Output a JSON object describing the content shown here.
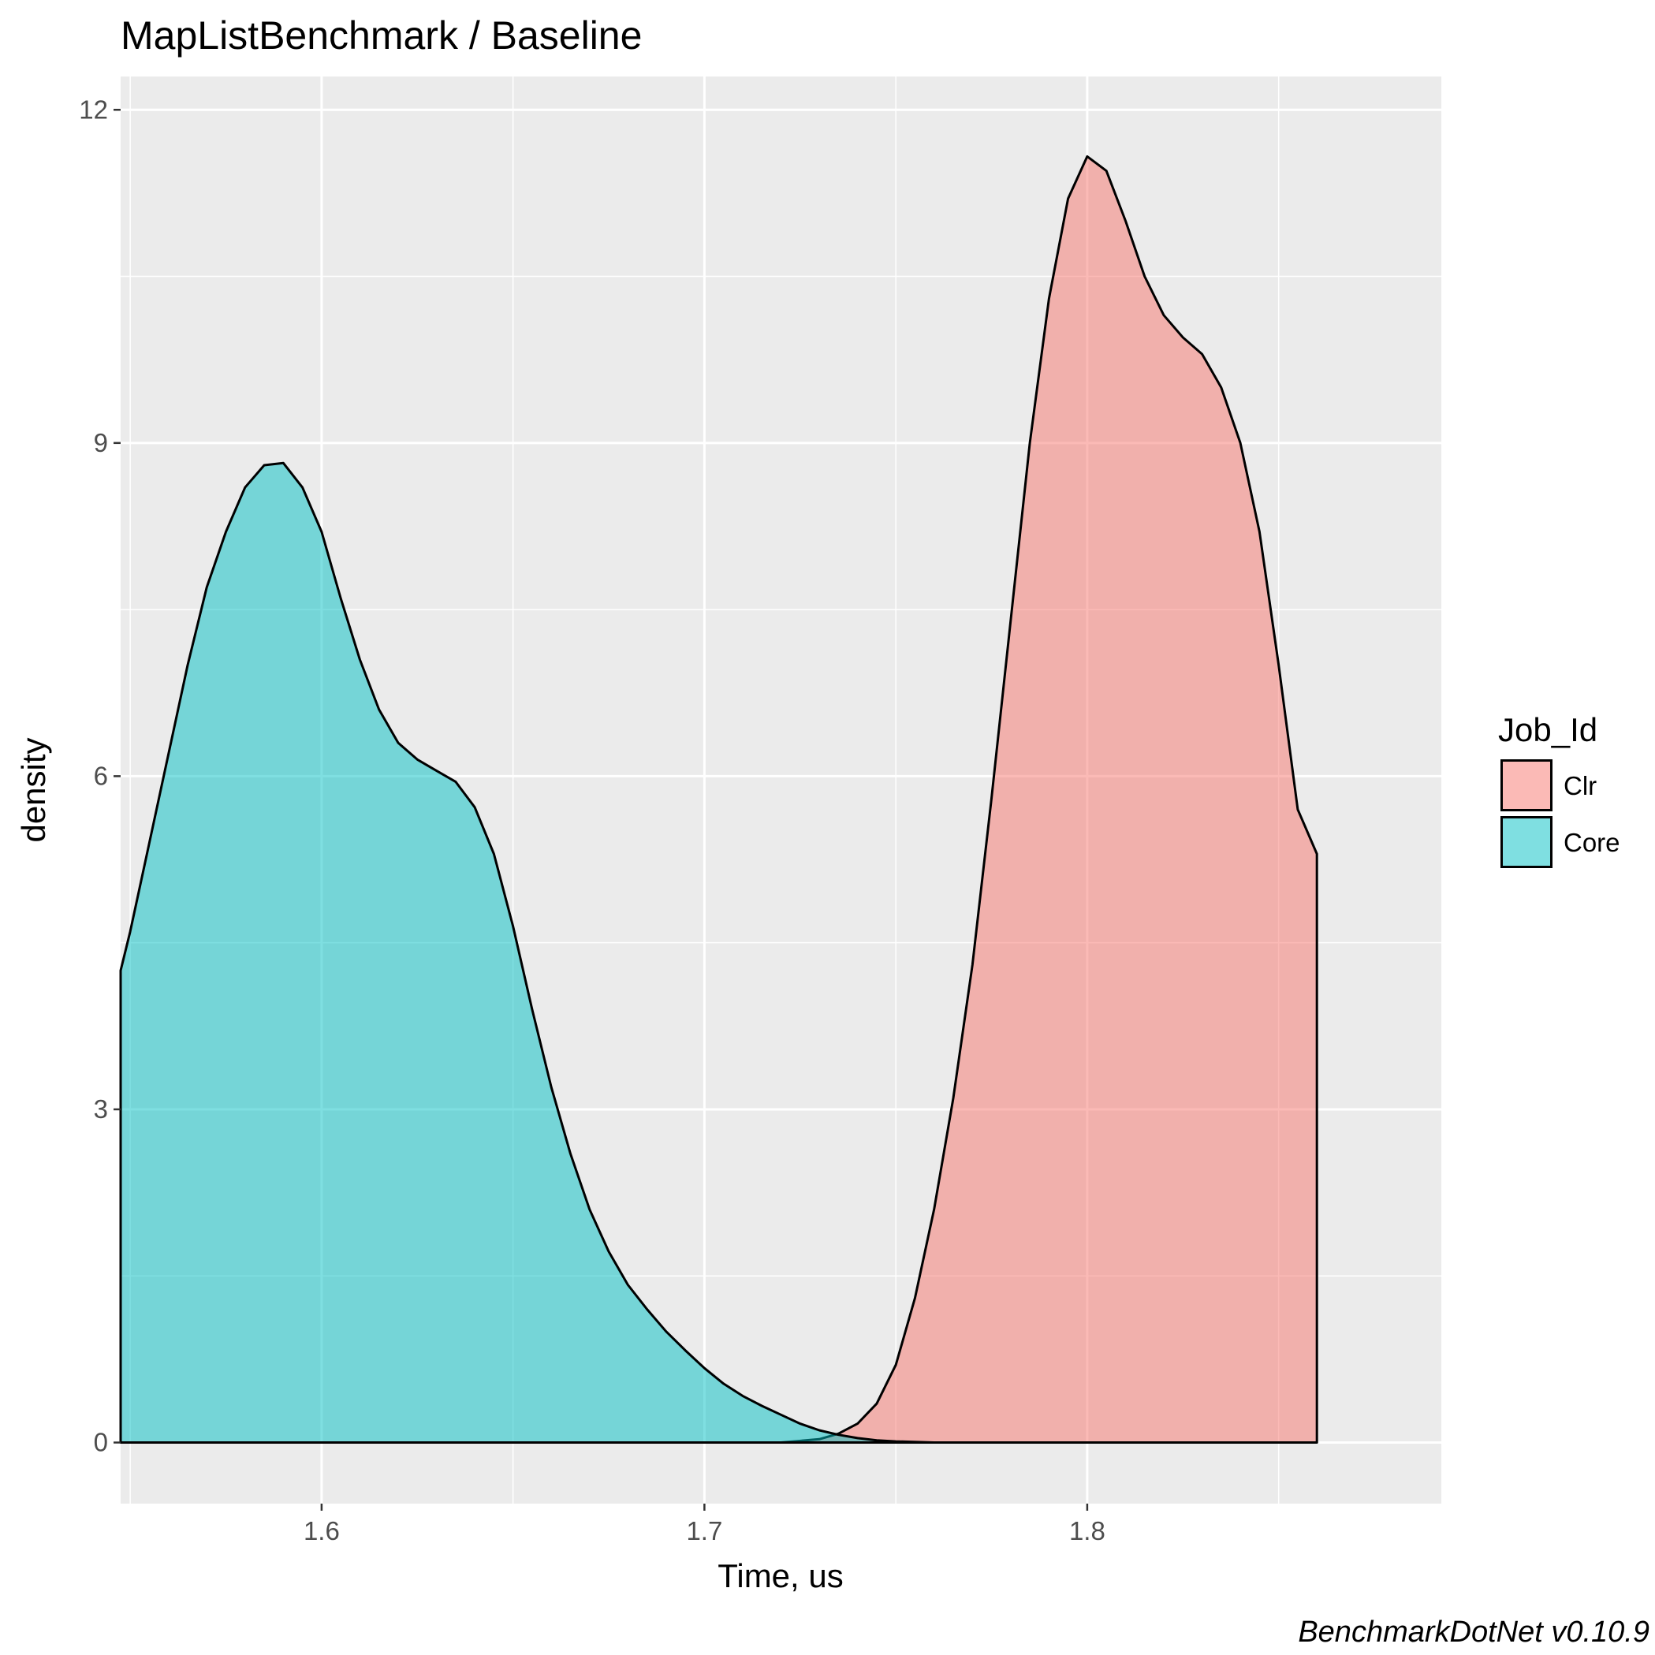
{
  "chart_data": {
    "type": "area",
    "title": "MapListBenchmark / Baseline",
    "xlabel": "Time, us",
    "ylabel": "density",
    "caption": "BenchmarkDotNet v0.10.9",
    "xlim": [
      1.5475,
      1.8925
    ],
    "ylim": [
      -0.55,
      12.3
    ],
    "x_ticks": [
      {
        "value": 1.6,
        "label": "1.6"
      },
      {
        "value": 1.7,
        "label": "1.7"
      },
      {
        "value": 1.8,
        "label": "1.8"
      }
    ],
    "x_minor_ticks": [
      1.55,
      1.65,
      1.75,
      1.85
    ],
    "y_ticks": [
      {
        "value": 0,
        "label": "0"
      },
      {
        "value": 3,
        "label": "3"
      },
      {
        "value": 6,
        "label": "6"
      },
      {
        "value": 9,
        "label": "9"
      },
      {
        "value": 12,
        "label": "12"
      }
    ],
    "y_minor_ticks": [
      1.5,
      4.5,
      7.5,
      10.5
    ],
    "grid": true,
    "legend": {
      "title": "Job_Id",
      "position": "right"
    },
    "series": [
      {
        "name": "Clr",
        "color": "#F8766D",
        "points": [
          [
            1.72,
            0.0
          ],
          [
            1.73,
            0.03
          ],
          [
            1.735,
            0.08
          ],
          [
            1.74,
            0.17
          ],
          [
            1.745,
            0.35
          ],
          [
            1.75,
            0.7
          ],
          [
            1.755,
            1.3
          ],
          [
            1.76,
            2.1
          ],
          [
            1.765,
            3.1
          ],
          [
            1.77,
            4.3
          ],
          [
            1.775,
            5.8
          ],
          [
            1.78,
            7.4
          ],
          [
            1.785,
            9.0
          ],
          [
            1.79,
            10.3
          ],
          [
            1.795,
            11.2
          ],
          [
            1.8,
            11.58
          ],
          [
            1.805,
            11.45
          ],
          [
            1.81,
            11.0
          ],
          [
            1.815,
            10.5
          ],
          [
            1.82,
            10.15
          ],
          [
            1.825,
            9.95
          ],
          [
            1.83,
            9.8
          ],
          [
            1.835,
            9.5
          ],
          [
            1.84,
            9.0
          ],
          [
            1.845,
            8.2
          ],
          [
            1.85,
            7.0
          ],
          [
            1.855,
            5.7
          ],
          [
            1.86,
            5.3
          ]
        ]
      },
      {
        "name": "Core",
        "color": "#00BFC4",
        "points": [
          [
            1.5475,
            4.25
          ],
          [
            1.55,
            4.6
          ],
          [
            1.555,
            5.4
          ],
          [
            1.56,
            6.2
          ],
          [
            1.565,
            7.0
          ],
          [
            1.57,
            7.7
          ],
          [
            1.575,
            8.2
          ],
          [
            1.58,
            8.6
          ],
          [
            1.585,
            8.8
          ],
          [
            1.59,
            8.82
          ],
          [
            1.595,
            8.6
          ],
          [
            1.6,
            8.2
          ],
          [
            1.605,
            7.6
          ],
          [
            1.61,
            7.05
          ],
          [
            1.615,
            6.6
          ],
          [
            1.62,
            6.3
          ],
          [
            1.625,
            6.15
          ],
          [
            1.63,
            6.05
          ],
          [
            1.635,
            5.95
          ],
          [
            1.64,
            5.72
          ],
          [
            1.645,
            5.3
          ],
          [
            1.65,
            4.65
          ],
          [
            1.655,
            3.9
          ],
          [
            1.66,
            3.2
          ],
          [
            1.665,
            2.6
          ],
          [
            1.67,
            2.1
          ],
          [
            1.675,
            1.72
          ],
          [
            1.68,
            1.42
          ],
          [
            1.685,
            1.2
          ],
          [
            1.69,
            1.0
          ],
          [
            1.695,
            0.83
          ],
          [
            1.7,
            0.67
          ],
          [
            1.705,
            0.53
          ],
          [
            1.71,
            0.42
          ],
          [
            1.715,
            0.33
          ],
          [
            1.72,
            0.25
          ],
          [
            1.725,
            0.17
          ],
          [
            1.73,
            0.11
          ],
          [
            1.735,
            0.07
          ],
          [
            1.74,
            0.04
          ],
          [
            1.745,
            0.02
          ],
          [
            1.75,
            0.01
          ],
          [
            1.76,
            0.0
          ]
        ]
      }
    ]
  }
}
